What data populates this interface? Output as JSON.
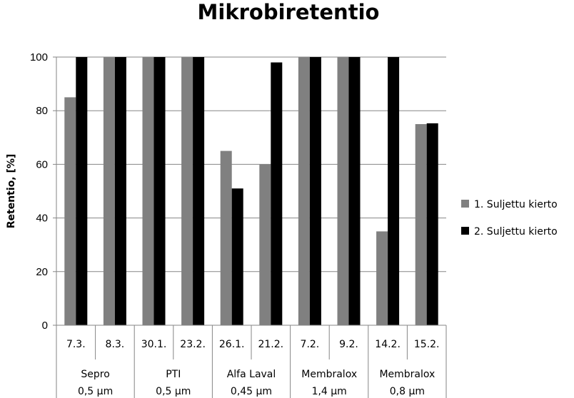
{
  "chart_data": {
    "type": "bar",
    "title": "Mikrobiretentio",
    "ylabel": "Retentio, [%]",
    "xlabel": "",
    "ylim": [
      0,
      100
    ],
    "yticks": [
      0,
      20,
      40,
      60,
      80,
      100
    ],
    "grid": true,
    "legend_position": "right",
    "categories": [
      "7.3.",
      "8.3.",
      "30.1.",
      "23.2.",
      "26.1.",
      "21.2.",
      "7.2.",
      "9.2.",
      "14.2.",
      "15.2."
    ],
    "groups": [
      {
        "line1": "Sepro",
        "line2": "0,5 µm",
        "span": 2
      },
      {
        "line1": "PTI",
        "line2": "0,5 µm",
        "span": 2
      },
      {
        "line1": "Alfa Laval",
        "line2": "0,45 µm",
        "span": 2
      },
      {
        "line1": "Membralox",
        "line2": "1,4 µm",
        "span": 2
      },
      {
        "line1": "Membralox",
        "line2": "0,8 µm",
        "span": 2
      }
    ],
    "series": [
      {
        "name": "1. Suljettu kierto",
        "color": "#808080",
        "values": [
          85,
          100,
          100,
          100,
          65,
          60,
          100,
          100,
          35,
          75
        ]
      },
      {
        "name": "2. Suljettu kierto",
        "color": "#000000",
        "values": [
          100,
          100,
          100,
          100,
          51,
          98,
          100,
          100,
          100,
          75.3
        ]
      }
    ]
  }
}
